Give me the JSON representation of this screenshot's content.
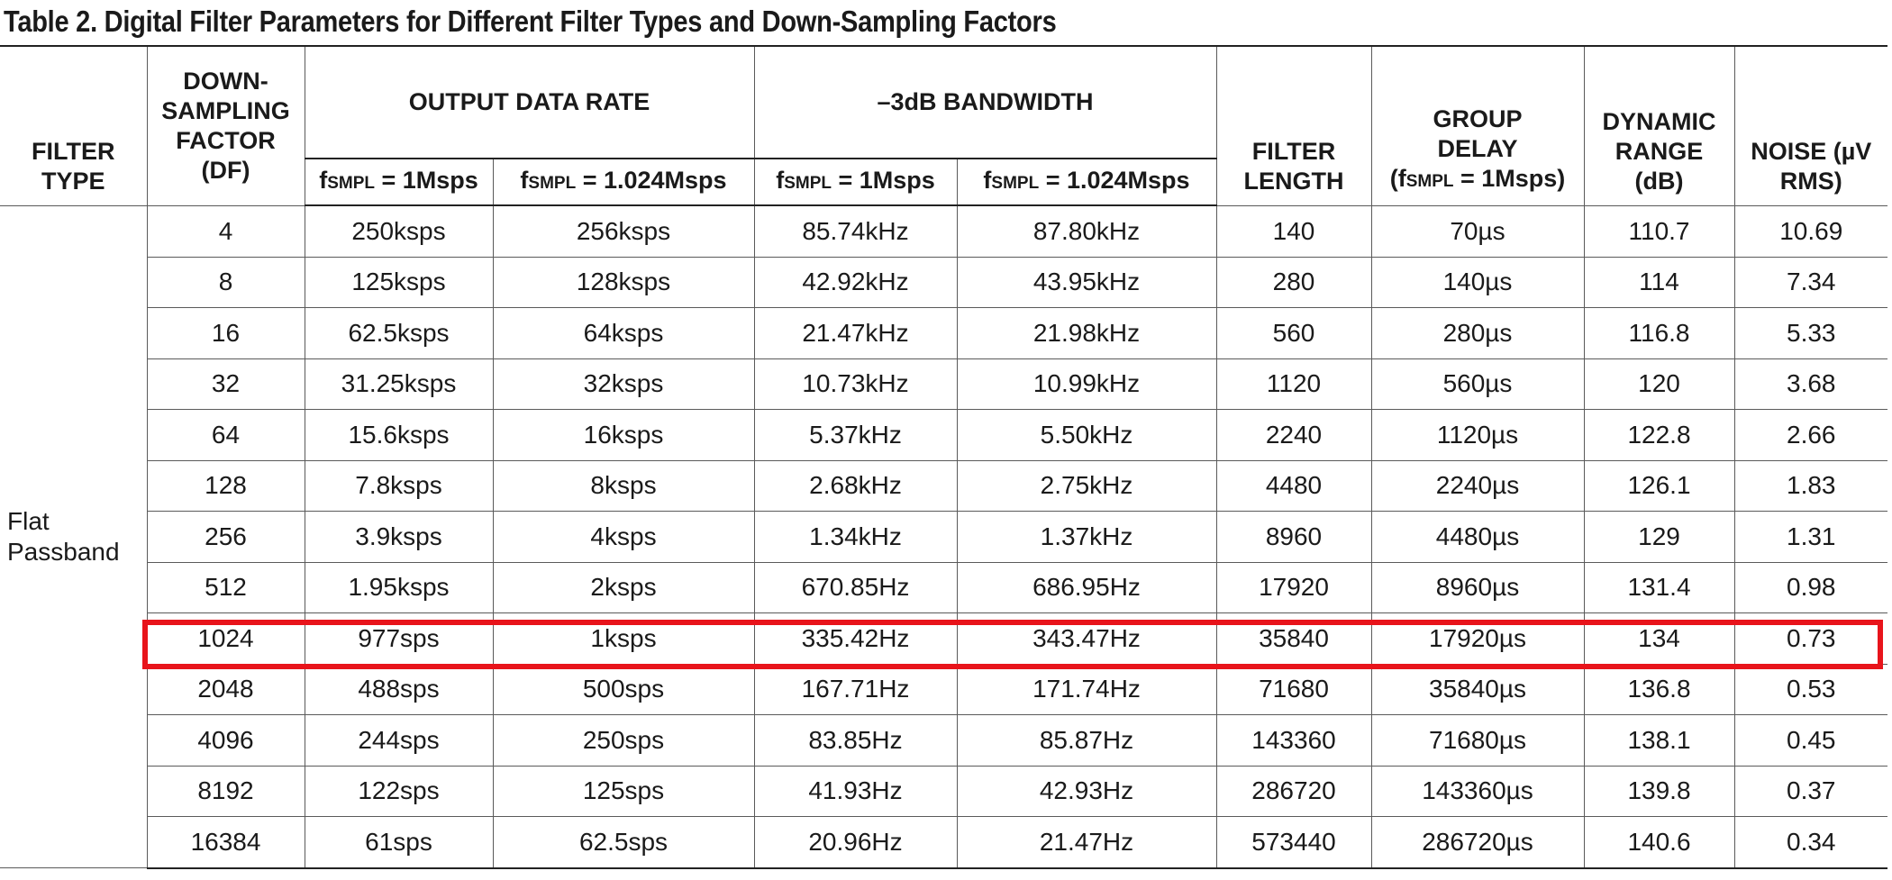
{
  "title": "Table 2. Digital Filter Parameters for Different Filter Types and Down-Sampling Factors",
  "headers": {
    "filter_type": [
      "FILTER",
      "TYPE"
    ],
    "df": [
      "DOWN-",
      "SAMPLING",
      "FACTOR",
      "(DF)"
    ],
    "output_data_rate": "OUTPUT DATA RATE",
    "bandwidth": "–3dB BANDWIDTH",
    "filter_length": [
      "FILTER",
      "LENGTH"
    ],
    "group_delay": [
      "GROUP",
      "DELAY"
    ],
    "dynamic_range": [
      "DYNAMIC",
      "RANGE",
      "(dB)"
    ],
    "noise": [
      "NOISE (µV",
      "RMS)"
    ],
    "cond_1msps": {
      "f": "f",
      "sub": "SMPL",
      "rest": " = 1Msps"
    },
    "cond_1024msps": {
      "f": "f",
      "sub": "SMPL",
      "rest": " = 1.024Msps"
    },
    "gd_cond": {
      "open": "(f",
      "sub": "SMPL",
      "rest": " = 1Msps)"
    }
  },
  "filter_type": [
    "Flat",
    "Passband"
  ],
  "rows": [
    [
      "4",
      "250ksps",
      "256ksps",
      "85.74kHz",
      "87.80kHz",
      "140",
      "70µs",
      "110.7",
      "10.69"
    ],
    [
      "8",
      "125ksps",
      "128ksps",
      "42.92kHz",
      "43.95kHz",
      "280",
      "140µs",
      "114",
      "7.34"
    ],
    [
      "16",
      "62.5ksps",
      "64ksps",
      "21.47kHz",
      "21.98kHz",
      "560",
      "280µs",
      "116.8",
      "5.33"
    ],
    [
      "32",
      "31.25ksps",
      "32ksps",
      "10.73kHz",
      "10.99kHz",
      "1120",
      "560µs",
      "120",
      "3.68"
    ],
    [
      "64",
      "15.6ksps",
      "16ksps",
      "5.37kHz",
      "5.50kHz",
      "2240",
      "1120µs",
      "122.8",
      "2.66"
    ],
    [
      "128",
      "7.8ksps",
      "8ksps",
      "2.68kHz",
      "2.75kHz",
      "4480",
      "2240µs",
      "126.1",
      "1.83"
    ],
    [
      "256",
      "3.9ksps",
      "4ksps",
      "1.34kHz",
      "1.37kHz",
      "8960",
      "4480µs",
      "129",
      "1.31"
    ],
    [
      "512",
      "1.95ksps",
      "2ksps",
      "670.85Hz",
      "686.95Hz",
      "17920",
      "8960µs",
      "131.4",
      "0.98"
    ],
    [
      "1024",
      "977sps",
      "1ksps",
      "335.42Hz",
      "343.47Hz",
      "35840",
      "17920µs",
      "134",
      "0.73"
    ],
    [
      "2048",
      "488sps",
      "500sps",
      "167.71Hz",
      "171.74Hz",
      "71680",
      "35840µs",
      "136.8",
      "0.53"
    ],
    [
      "4096",
      "244sps",
      "250sps",
      "83.85Hz",
      "85.87Hz",
      "143360",
      "71680µs",
      "138.1",
      "0.45"
    ],
    [
      "8192",
      "122sps",
      "125sps",
      "41.93Hz",
      "42.93Hz",
      "286720",
      "143360µs",
      "139.8",
      "0.37"
    ],
    [
      "16384",
      "61sps",
      "62.5sps",
      "20.96Hz",
      "21.47Hz",
      "573440",
      "286720µs",
      "140.6",
      "0.34"
    ]
  ],
  "highlighted_row_df": "1024",
  "highlight_color": "#e8141b"
}
